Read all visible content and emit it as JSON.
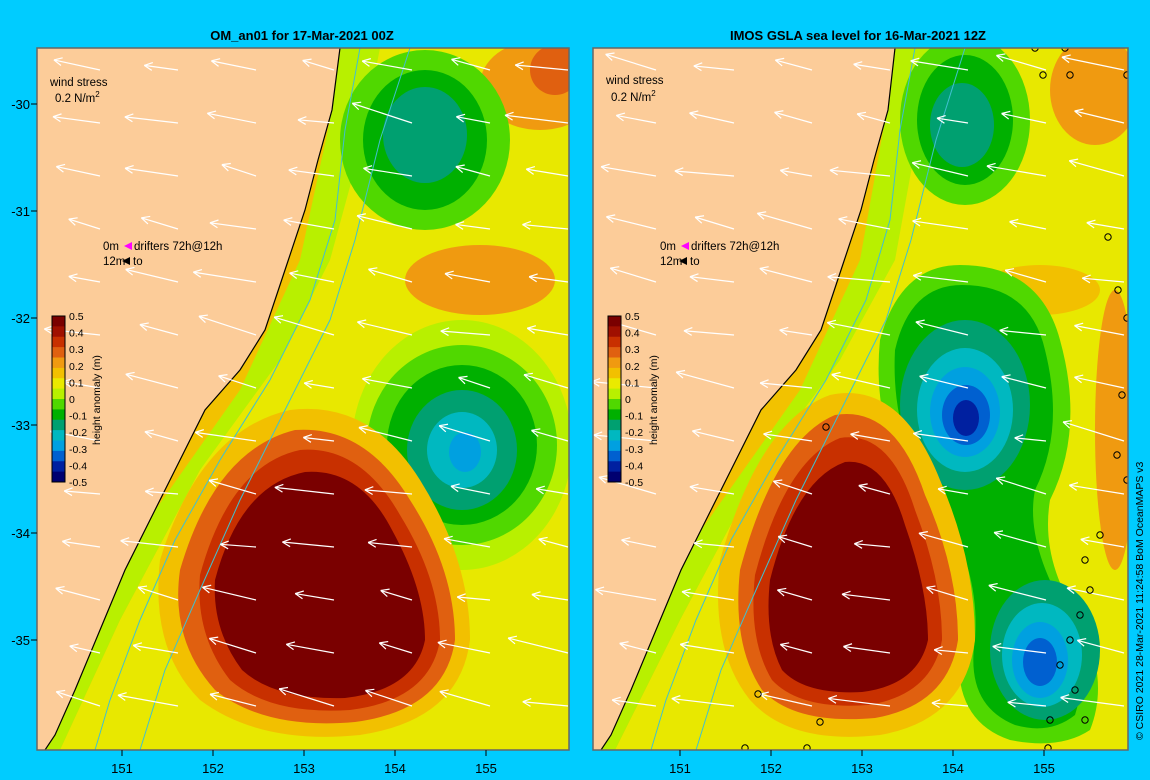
{
  "panels": [
    {
      "title": "OM_an01 for 17-Mar-2021 00Z",
      "wind_label": "wind stress",
      "wind_scale_value": "0.2 N/m",
      "wind_scale_exp": "2",
      "drifter_line1_depth": "0m",
      "drifter_line1_text": "drifters 72h@12h",
      "drifter_line2_depth": "12m",
      "drifter_line2_text": "to"
    },
    {
      "title": "IMOS GSLA sea level  for 16-Mar-2021 12Z",
      "wind_label": "wind stress",
      "wind_scale_value": "0.2 N/m",
      "wind_scale_exp": "2",
      "drifter_line1_depth": "0m",
      "drifter_line1_text": "drifters 72h@12h",
      "drifter_line2_depth": "12m",
      "drifter_line2_text": "to"
    }
  ],
  "axes": {
    "lat_ticks": [
      "-30",
      "-31",
      "-32",
      "-33",
      "-34",
      "-35"
    ],
    "lon_ticks": [
      "151",
      "152",
      "153",
      "154",
      "155"
    ]
  },
  "colorbar": {
    "label": "height anomaly (m)",
    "ticks": [
      "0.5",
      "0.4",
      "0.3",
      "0.2",
      "0.1",
      "0",
      "-0.1",
      "-0.2",
      "-0.3",
      "-0.4",
      "-0.5"
    ],
    "colors": [
      "#7a0000",
      "#a01000",
      "#c83000",
      "#e06010",
      "#f09a10",
      "#f2c000",
      "#eaea00",
      "#b8f000",
      "#50d800",
      "#00b000",
      "#00a070",
      "#00b8c0",
      "#00a0e0",
      "#0060d0",
      "#0020a0",
      "#000070"
    ]
  },
  "credit": "© CSIRO 2021   28-Mar-2021 11:24:58 BoM OceanMAPS v3",
  "colors": {
    "background": "#00ccff",
    "land": "#fccc99",
    "coast": "#aa9988"
  }
}
